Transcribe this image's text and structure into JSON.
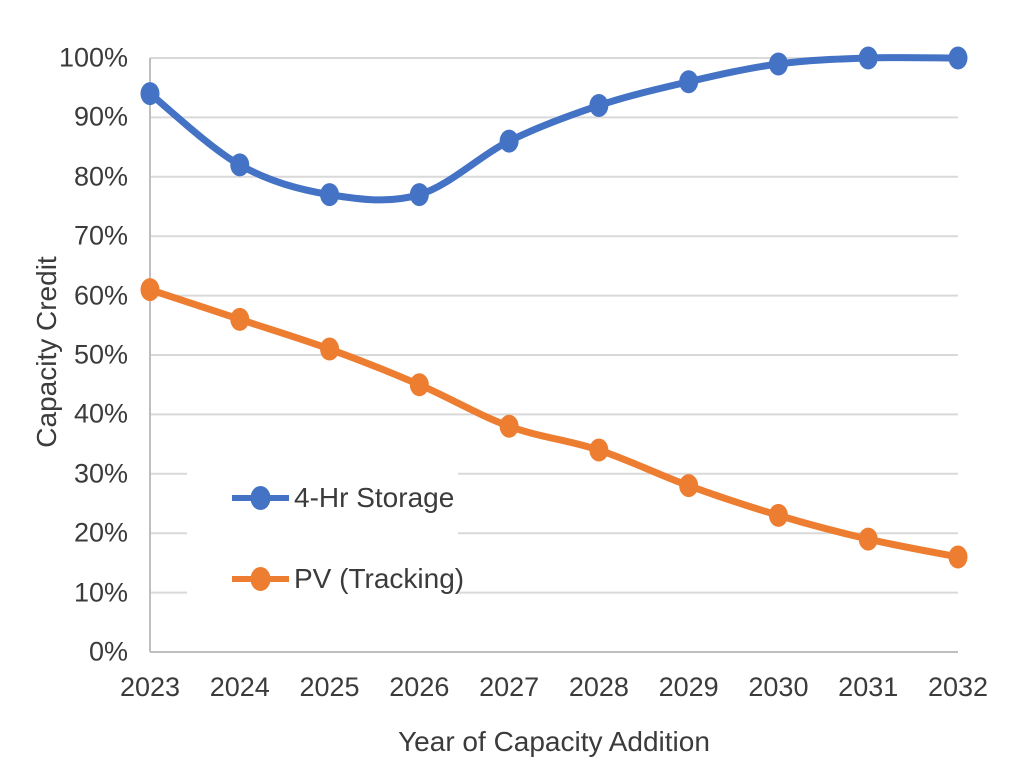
{
  "chart_data": {
    "type": "line",
    "title": "",
    "xlabel": "Year of Capacity Addition",
    "ylabel": "Capacity Credit",
    "x": [
      2023,
      2024,
      2025,
      2026,
      2027,
      2028,
      2029,
      2030,
      2031,
      2032
    ],
    "ylim": [
      0,
      100
    ],
    "ytick_step": 10,
    "ytick_suffix": "%",
    "grid": "horizontal",
    "line_style": "smooth",
    "markers": "circle",
    "legend_position": "inside-lower-left",
    "series": [
      {
        "name": "4-Hr Storage",
        "color": "#4472C4",
        "values": [
          94,
          82,
          77,
          77,
          86,
          92,
          96,
          99,
          100,
          100
        ]
      },
      {
        "name": "PV (Tracking)",
        "color": "#ED7D31",
        "values": [
          61,
          56,
          51,
          45,
          38,
          34,
          28,
          23,
          19,
          16
        ]
      }
    ]
  },
  "style": {
    "background": "#FFFFFF",
    "grid_color": "#D9D9D9",
    "axis_color": "#BFBFBF",
    "text_color": "#3B3B3B"
  }
}
